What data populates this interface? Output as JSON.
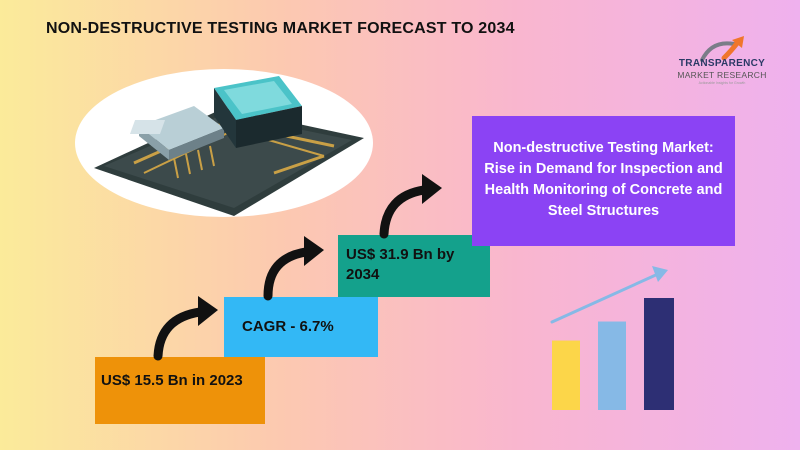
{
  "header": {
    "title": "NON-DESTRUCTIVE TESTING MARKET FORECAST TO 2034"
  },
  "logo": {
    "line1": "TRANSPARENCY",
    "line2": "MARKET RESEARCH",
    "tagline": "Actionable Insights for Growth",
    "colors": {
      "arrow": "#f0762b",
      "swoosh": "#7a7d88",
      "text": "#2b3a66"
    }
  },
  "steps": [
    {
      "text": "US$ 15.5 Bn in 2023",
      "color": "#ee9209"
    },
    {
      "text": "CAGR - 6.7%",
      "color": "#33b8f5"
    },
    {
      "text": "US$ 31.9 Bn by 2034",
      "color": "#14a18c"
    }
  ],
  "callout": {
    "text": "Non-destructive Testing Market: Rise in Demand for Inspection and Health Monitoring of Concrete and Steel Structures",
    "color": "#8b43f4"
  },
  "icons": {
    "image": "microchip-photo",
    "step_arrows": "curved-arrow-icon",
    "chart": "growth-bar-chart-icon"
  },
  "growth_bars": {
    "colors": [
      "#fcd649",
      "#86b9e6",
      "#2d2f74"
    ],
    "relative_heights": [
      0.62,
      0.79,
      1.0
    ]
  }
}
